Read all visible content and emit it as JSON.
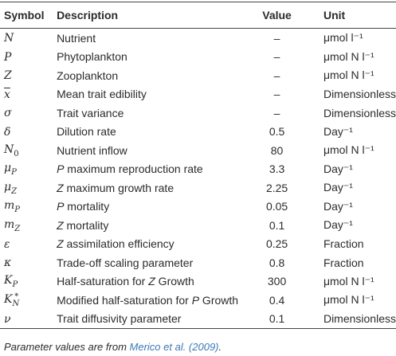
{
  "table": {
    "header": [
      "Symbol",
      "Description",
      "Value",
      "Unit"
    ],
    "rows": [
      {
        "symbol": {
          "base": "N"
        },
        "description": [
          {
            "text": "Nutrient"
          }
        ],
        "value": "–",
        "unit": "μmol l⁻¹"
      },
      {
        "symbol": {
          "base": "P"
        },
        "description": [
          {
            "text": "Phytoplankton"
          }
        ],
        "value": "–",
        "unit": "μmol N l⁻¹"
      },
      {
        "symbol": {
          "base": "Z"
        },
        "description": [
          {
            "text": "Zooplankton"
          }
        ],
        "value": "–",
        "unit": "μmol N l⁻¹"
      },
      {
        "symbol": {
          "base": "x",
          "overline": true
        },
        "description": [
          {
            "text": "Mean trait edibility"
          }
        ],
        "value": "–",
        "unit": "Dimensionless"
      },
      {
        "symbol": {
          "base": "σ"
        },
        "description": [
          {
            "text": "Trait variance"
          }
        ],
        "value": "–",
        "unit": "Dimensionless"
      },
      {
        "symbol": {
          "base": "δ"
        },
        "description": [
          {
            "text": "Dilution rate"
          }
        ],
        "value": "0.5",
        "unit": "Day⁻¹"
      },
      {
        "symbol": {
          "base": "N",
          "sub": "0"
        },
        "description": [
          {
            "text": "Nutrient inflow"
          }
        ],
        "value": "80",
        "unit": "μmol N l⁻¹"
      },
      {
        "symbol": {
          "base": "μ",
          "sub": "P"
        },
        "description": [
          {
            "text": "P",
            "italic": true
          },
          {
            "text": " maximum reproduction rate"
          }
        ],
        "value": "3.3",
        "unit": "Day⁻¹"
      },
      {
        "symbol": {
          "base": "μ",
          "sub": "Z"
        },
        "description": [
          {
            "text": "Z",
            "italic": true
          },
          {
            "text": " maximum growth rate"
          }
        ],
        "value": "2.25",
        "unit": "Day⁻¹"
      },
      {
        "symbol": {
          "base": "m",
          "sub": "P"
        },
        "description": [
          {
            "text": "P",
            "italic": true
          },
          {
            "text": " mortality"
          }
        ],
        "value": "0.05",
        "unit": "Day⁻¹"
      },
      {
        "symbol": {
          "base": "m",
          "sub": "Z"
        },
        "description": [
          {
            "text": "Z",
            "italic": true
          },
          {
            "text": " mortality"
          }
        ],
        "value": "0.1",
        "unit": "Day⁻¹"
      },
      {
        "symbol": {
          "base": "ε"
        },
        "description": [
          {
            "text": "Z",
            "italic": true
          },
          {
            "text": " assimilation efficiency"
          }
        ],
        "value": "0.25",
        "unit": "Fraction"
      },
      {
        "symbol": {
          "base": "κ"
        },
        "description": [
          {
            "text": "Trade-off scaling parameter"
          }
        ],
        "value": "0.8",
        "unit": "Fraction"
      },
      {
        "symbol": {
          "base": "K",
          "sub": "P"
        },
        "description": [
          {
            "text": "Half-saturation for "
          },
          {
            "text": "Z",
            "italic": true
          },
          {
            "text": " Growth"
          }
        ],
        "value": "300",
        "unit": "μmol N l⁻¹"
      },
      {
        "symbol": {
          "base": "K",
          "sub": "N",
          "sup": "*"
        },
        "description": [
          {
            "text": "Modified half-saturation for "
          },
          {
            "text": "P",
            "italic": true
          },
          {
            "text": " Growth"
          }
        ],
        "value": "0.4",
        "unit": "μmol N l⁻¹"
      },
      {
        "symbol": {
          "base": "ν"
        },
        "description": [
          {
            "text": "Trait diffusivity parameter"
          }
        ],
        "value": "0.1",
        "unit": "Dimensionless"
      }
    ]
  },
  "footnote": [
    {
      "text": "Parameter values are from "
    },
    {
      "text": "Merico et al. (2009)",
      "link": true
    },
    {
      "text": "."
    }
  ]
}
